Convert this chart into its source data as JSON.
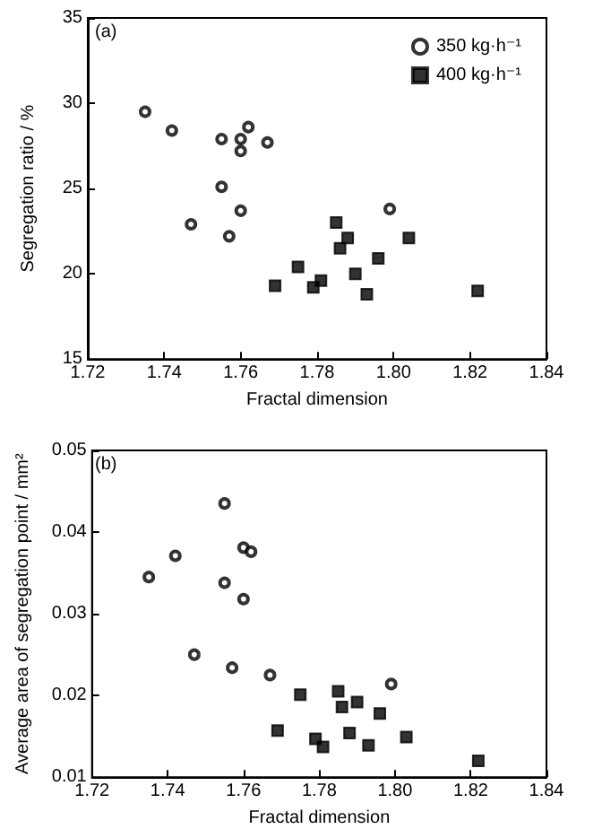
{
  "chart_data": [
    {
      "type": "scatter",
      "xlabel": "Fractal dimension",
      "ylabel": "Segregation ratio / %",
      "annotations": [
        "(a)"
      ],
      "legend": "top right",
      "grid": false,
      "xlim": [
        1.72,
        1.84
      ],
      "xticks": [
        1.72,
        1.74,
        1.76,
        1.78,
        {
          "value": 1.8,
          "label": "1.80"
        },
        1.82,
        1.84
      ],
      "ylim": [
        15,
        35
      ],
      "yticks": [
        15,
        20,
        25,
        30,
        35
      ],
      "series": [
        {
          "name": "350 kg·h⁻¹",
          "color": "#000000",
          "marker": "circle",
          "x": [
            1.735,
            1.742,
            1.755,
            1.76,
            1.76,
            1.762,
            1.767,
            1.755,
            1.76,
            1.747,
            1.757,
            1.799
          ],
          "values": [
            29.5,
            28.4,
            27.9,
            27.9,
            27.2,
            28.6,
            27.7,
            25.1,
            23.7,
            22.9,
            22.2,
            23.8
          ]
        },
        {
          "name": "400 kg·h⁻¹",
          "color": "#000000",
          "marker": "square",
          "x": [
            1.785,
            1.788,
            1.786,
            1.804,
            1.796,
            1.775,
            1.79,
            1.769,
            1.781,
            1.779,
            1.793,
            1.822
          ],
          "values": [
            23.0,
            22.1,
            21.5,
            22.1,
            20.9,
            20.4,
            20.0,
            19.3,
            19.6,
            19.2,
            18.8,
            19.0
          ]
        }
      ]
    },
    {
      "type": "scatter",
      "xlabel": "Fractal dimension",
      "ylabel": "Average area of segregation point / mm²",
      "annotations": [
        "(b)"
      ],
      "legend": false,
      "grid": false,
      "xlim": [
        1.72,
        1.84
      ],
      "xticks": [
        1.72,
        1.74,
        1.76,
        1.78,
        {
          "value": 1.8,
          "label": "1.80"
        },
        1.82,
        1.84
      ],
      "ylim": [
        0.01,
        0.05
      ],
      "yticks": [
        0.01,
        0.02,
        0.03,
        0.04,
        0.05
      ],
      "series": [
        {
          "color": "#000000",
          "marker": "circle",
          "x": [
            1.755,
            1.742,
            1.735,
            1.76,
            1.762,
            1.755,
            1.76,
            1.747,
            1.757,
            1.767,
            1.799
          ],
          "values": [
            0.0435,
            0.0371,
            0.0345,
            0.0381,
            0.0376,
            0.0338,
            0.0318,
            0.025,
            0.0234,
            0.0225,
            0.0214
          ]
        },
        {
          "color": "#000000",
          "marker": "square",
          "x": [
            1.775,
            1.785,
            1.786,
            1.79,
            1.796,
            1.769,
            1.779,
            1.781,
            1.788,
            1.793,
            1.803,
            1.822
          ],
          "values": [
            0.0201,
            0.0205,
            0.0186,
            0.0192,
            0.0178,
            0.0157,
            0.0147,
            0.0137,
            0.0154,
            0.0139,
            0.0149,
            0.012
          ]
        }
      ]
    }
  ]
}
